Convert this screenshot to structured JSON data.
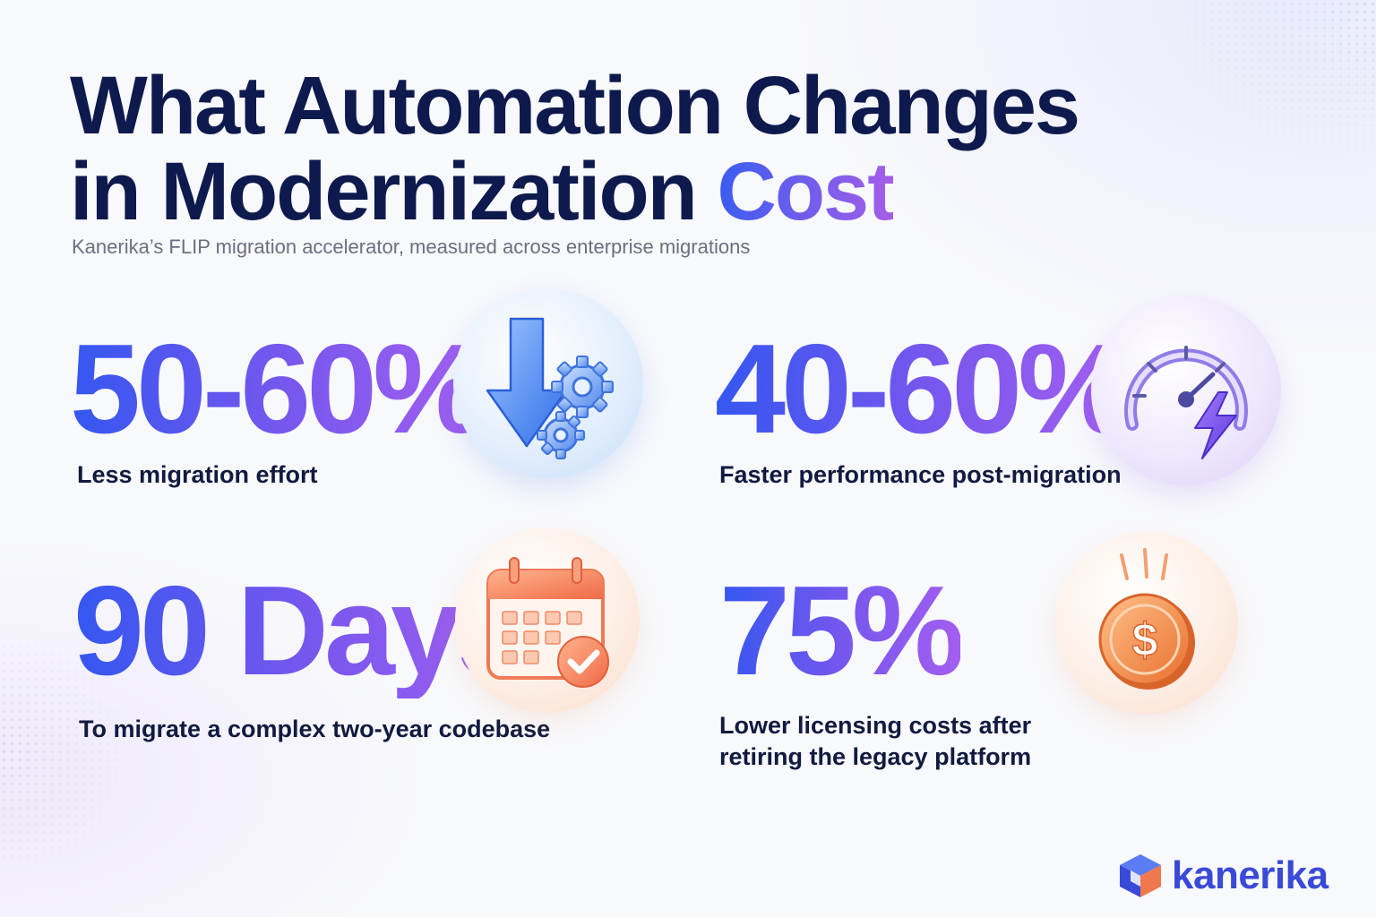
{
  "header": {
    "title_line1": "What Automation Changes",
    "title_line2_main": "in Modernization ",
    "title_line2_accent": "Cost",
    "subtitle": "Kanerika’s FLIP migration accelerator, measured across enterprise migrations"
  },
  "stats": [
    {
      "value": "50-60%",
      "label": "Less migration effort",
      "icon": "arrow-down-gears-icon"
    },
    {
      "value": "40-60%",
      "label": "Faster performance post-migration",
      "icon": "speedometer-lightning-icon"
    },
    {
      "value": "90 Days",
      "label": "To migrate a complex two-year codebase",
      "icon": "calendar-check-icon"
    },
    {
      "value": "75%",
      "label_line1": "Lower licensing costs after",
      "label_line2": "retiring the legacy platform",
      "icon": "falling-dollar-coin-icon"
    }
  ],
  "brand": {
    "name": "kanerika",
    "colors": {
      "navy": "#0e1a4d",
      "blue": "#3457f0",
      "purple": "#a35ef0",
      "orange": "#f2814f"
    }
  }
}
